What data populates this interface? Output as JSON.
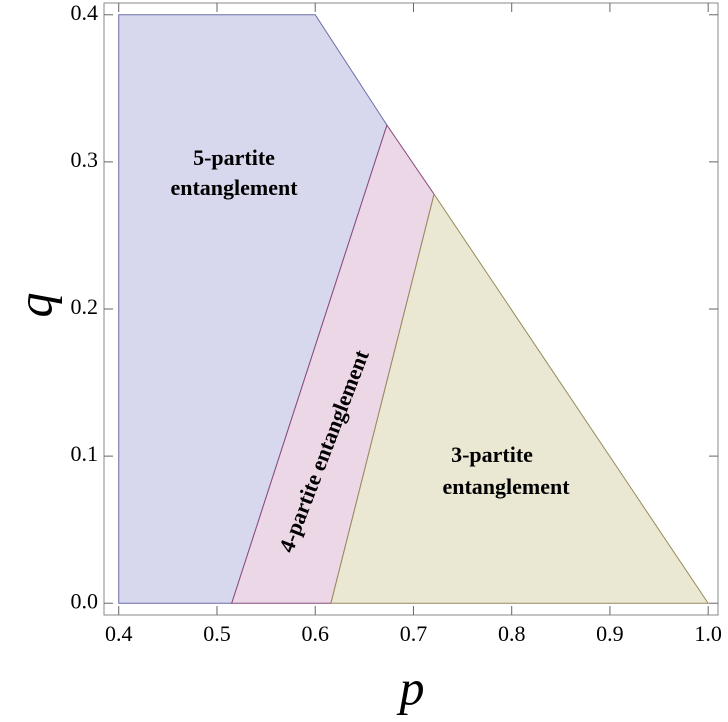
{
  "chart_data": {
    "type": "region",
    "xlabel": "p",
    "ylabel": "q",
    "xlim": [
      0.385,
      1.01
    ],
    "ylim": [
      -0.008,
      0.408
    ],
    "xticks": [
      0.4,
      0.5,
      0.6,
      0.7,
      0.8,
      0.9,
      {
        "value": 1,
        "label": "1.0"
      }
    ],
    "yticks": [
      {
        "value": 0,
        "label": "0.0"
      },
      0.1,
      0.2,
      0.3,
      0.4
    ],
    "series": [
      {
        "label": [
          "5-partite",
          "entanglement"
        ],
        "color": "#d7d7ed",
        "edge": "#6b6ba8",
        "x": [
          0.4,
          0.4,
          0.6,
          0.673,
          0.515
        ],
        "y": [
          0,
          0.4,
          0.4,
          0.325,
          0
        ]
      },
      {
        "label": [
          "4-partite entanglement"
        ],
        "color": "#ecd7e7",
        "edge": "#8a4a7a",
        "x": [
          0.515,
          0.673,
          0.721,
          0.616
        ],
        "y": [
          0,
          0.325,
          0.278,
          0
        ]
      },
      {
        "label": [
          "3-partite",
          "entanglement"
        ],
        "color": "#eae7d3",
        "edge": "#9a8a5a",
        "x": [
          0.616,
          0.721,
          1.0
        ],
        "y": [
          0,
          0.278,
          0
        ]
      }
    ]
  }
}
